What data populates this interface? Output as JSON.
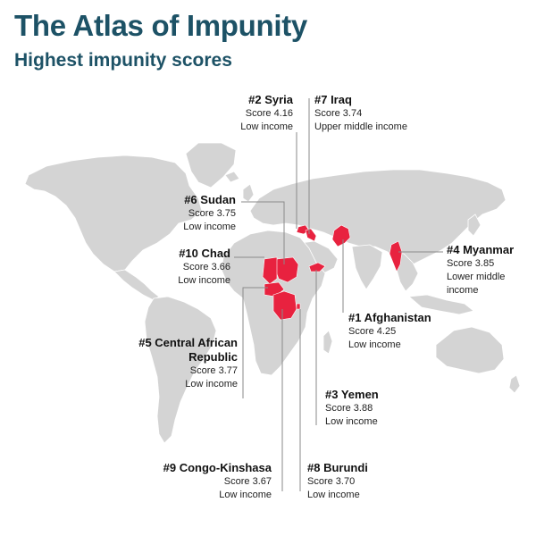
{
  "header": {
    "title": "The Atlas of Impunity",
    "subtitle": "Highest impunity scores"
  },
  "colors": {
    "title": "#1d5266",
    "land": "#d4d4d4",
    "highlight": "#e8223f",
    "leader": "#8a8a8a"
  },
  "countries": [
    {
      "rank": "#1 Afghanistan",
      "score": "Score 4.25",
      "income": "Low income"
    },
    {
      "rank": "#2 Syria",
      "score": "Score 4.16",
      "income": "Low income"
    },
    {
      "rank": "#3 Yemen",
      "score": "Score 3.88",
      "income": "Low income"
    },
    {
      "rank": "#4 Myanmar",
      "score": "Score 3.85",
      "income": "Lower middle income"
    },
    {
      "rank": "#5 Central African Republic",
      "score": "Score 3.77",
      "income": "Low income"
    },
    {
      "rank": "#6 Sudan",
      "score": "Score 3.75",
      "income": "Low income"
    },
    {
      "rank": "#7 Iraq",
      "score": "Score 3.74",
      "income": "Upper middle income"
    },
    {
      "rank": "#8 Burundi",
      "score": "Score 3.70",
      "income": "Low income"
    },
    {
      "rank": "#9 Congo-Kinshasa",
      "score": "Score 3.67",
      "income": "Low income"
    },
    {
      "rank": "#10 Chad",
      "score": "Score 3.66",
      "income": "Low income"
    }
  ]
}
